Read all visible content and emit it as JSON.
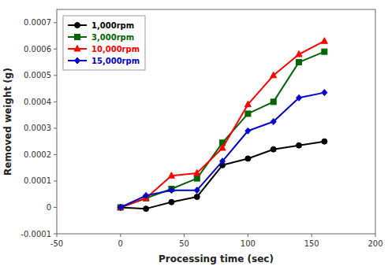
{
  "chart_data": {
    "type": "line",
    "xlabel": "Processing time (sec)",
    "ylabel": "Removed weight (g)",
    "x": [
      0,
      20,
      40,
      60,
      80,
      100,
      120,
      140,
      160
    ],
    "series": [
      {
        "name": "1,000rpm",
        "color": "#000000",
        "marker": "circle",
        "values": [
          0,
          -5e-06,
          2e-05,
          4e-05,
          0.00016,
          0.000185,
          0.00022,
          0.000235,
          0.00025
        ]
      },
      {
        "name": "3,000rpm",
        "color": "#006400",
        "marker": "square",
        "values": [
          0,
          3.5e-05,
          7e-05,
          0.00011,
          0.000245,
          0.000355,
          0.0004,
          0.00055,
          0.00059
        ]
      },
      {
        "name": "10,000rpm",
        "color": "#ff0000",
        "marker": "triangle",
        "values": [
          0,
          3.5e-05,
          0.00012,
          0.00013,
          0.000225,
          0.00039,
          0.0005,
          0.00058,
          0.00063
        ]
      },
      {
        "name": "15,000rpm",
        "color": "#0000cc",
        "marker": "diamond",
        "values": [
          0,
          4.5e-05,
          6.5e-05,
          6.5e-05,
          0.000175,
          0.00029,
          0.000325,
          0.000415,
          0.000435
        ]
      }
    ],
    "xlim": [
      -50,
      200
    ],
    "ylim": [
      -0.0001,
      0.00075
    ],
    "xticks": [
      -50,
      0,
      50,
      100,
      150,
      200
    ],
    "yticks": [
      -0.0001,
      0,
      0.0001,
      0.0002,
      0.0003,
      0.0004,
      0.0005,
      0.0006,
      0.0007
    ],
    "legend": "upper left",
    "grid": false
  }
}
